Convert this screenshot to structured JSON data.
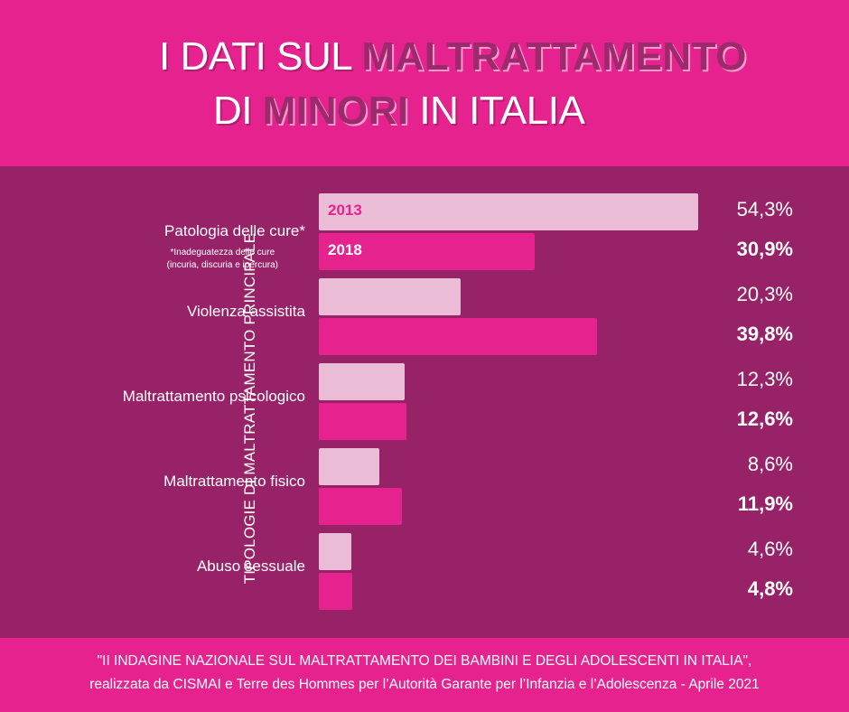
{
  "title": {
    "line1_pre": "I DATI SUL ",
    "line1_hl": "MALTRATTAMENTO",
    "line2_pre": "DI ",
    "line2_hl": "MINORI",
    "line2_post": " IN ITALIA"
  },
  "footer": {
    "line1": "\"II INDAGINE NAZIONALE SUL MALTRATTAMENTO DEI BAMBINI E DEGLI ADOLESCENTI IN ITALIA\",",
    "line2": "realizzata da CISMAI e Terre des Hommes per l’Autorità Garante per l’Infanzia e l’Adolescenza - Aprile 2021"
  },
  "colors": {
    "header_bg": "#e6228f",
    "panel_bg": "#982267",
    "bar_2013": "#eabcd6",
    "bar_2018": "#e6228f"
  },
  "chart_data": {
    "type": "bar",
    "orientation": "horizontal",
    "ylabel": "TIPOLOGIE DI MALTRATTAMENTO PRINCIPALE",
    "categories": [
      "Patologia delle cure*",
      "Violenza assistita",
      "Maltrattamento psicologico",
      "Maltrattamento fisico",
      "Abuso sessuale"
    ],
    "category_note": [
      "*Inadeguatezza delle cure",
      "(incuria, discuria e ipercura)"
    ],
    "series": [
      {
        "name": "2013",
        "values": [
          54.3,
          20.3,
          12.3,
          8.6,
          4.6
        ],
        "labels": [
          "54,3%",
          "20,3%",
          "12,3%",
          "8,6%",
          "4,6%"
        ]
      },
      {
        "name": "2018",
        "values": [
          30.9,
          39.8,
          12.6,
          11.9,
          4.8
        ],
        "labels": [
          "30,9%",
          "39,8%",
          "12,6%",
          "11,9%",
          "4,8%"
        ]
      }
    ],
    "xlim": [
      0,
      54.3
    ],
    "grid": false,
    "legend": "inside-first-bars"
  }
}
